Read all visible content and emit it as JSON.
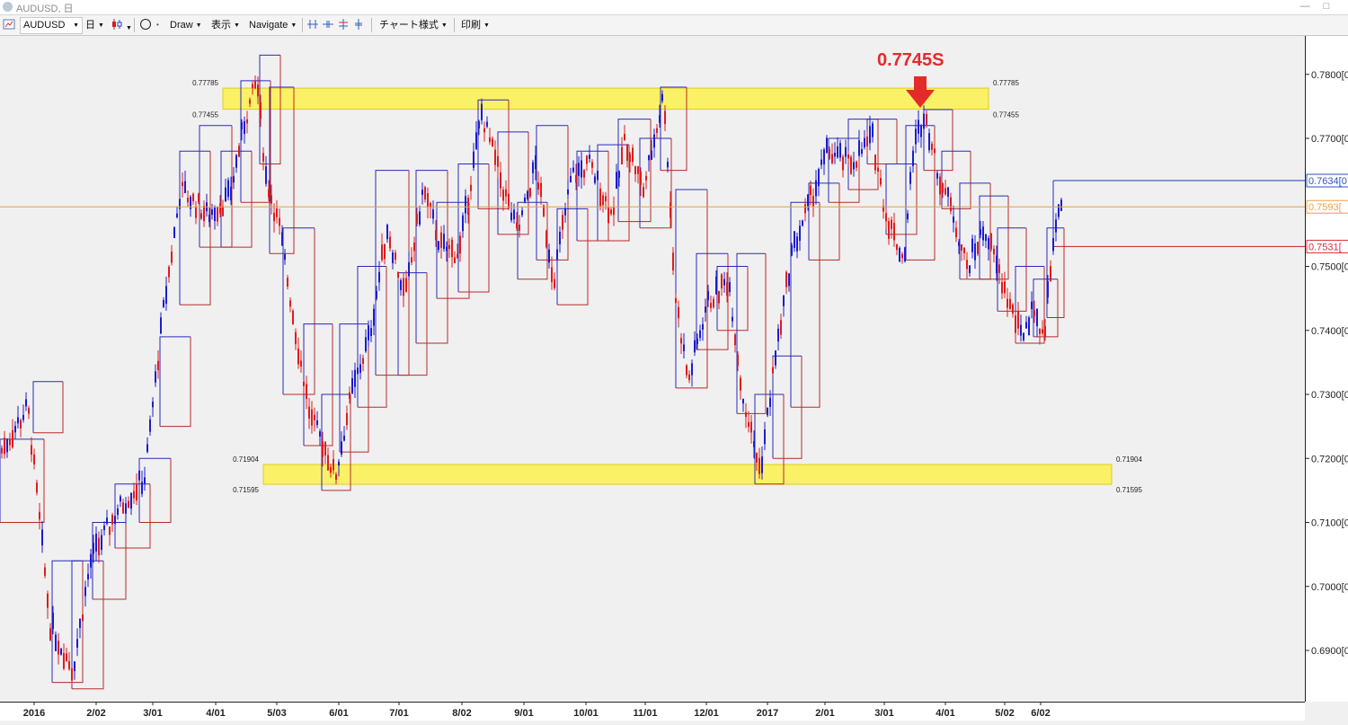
{
  "window": {
    "title": "AUDUSD, 日"
  },
  "toolbar": {
    "symbol": "AUDUSD",
    "timeframe": "日",
    "draw_label": "Draw",
    "view_label": "表示",
    "navigate_label": "Navigate",
    "chart_style_label": "チャート様式",
    "print_label": "印刷"
  },
  "colors": {
    "up": "#1c1cd0",
    "down": "#e01c1c",
    "zone": "#fbf25c",
    "zone_border": "#d8cc10",
    "current_line": "#e2a14e",
    "label_blue": "#2a52c8",
    "label_orange": "#f0a040",
    "label_red": "#d83030",
    "annotation": "#e52a2a"
  },
  "chart_data": {
    "type": "candlestick",
    "title": "AUDUSD, 日",
    "yrange": [
      0.682,
      0.786
    ],
    "y_ticks": [
      "0.7800[0",
      "0.7700[0",
      "0.7500[0",
      "0.7400[0",
      "0.7300[0",
      "0.7200[0",
      "0.7100[0",
      "0.7000[0",
      "0.6900[0"
    ],
    "x_ticks": [
      "2016",
      "2/02",
      "3/01",
      "4/01",
      "5/03",
      "6/01",
      "7/01",
      "8/02",
      "9/01",
      "10/01",
      "11/01",
      "12/01",
      "2017",
      "2/01",
      "3/01",
      "4/01",
      "5/02",
      "6/02"
    ],
    "annotation": {
      "text": "0.7745S",
      "price": 0.7745
    },
    "zones": [
      {
        "top": 0.77785,
        "bottom": 0.77455,
        "top_label": "0.77785",
        "bottom_label": "0.77455"
      },
      {
        "top": 0.71904,
        "bottom": 0.71595,
        "top_label": "0.71904",
        "bottom_label": "0.71595"
      }
    ],
    "price_labels": [
      {
        "price": 0.7634,
        "text": "0.7634[0",
        "color": "blue"
      },
      {
        "price": 0.7593,
        "text": "0.7593[",
        "color": "orange"
      },
      {
        "price": 0.7531,
        "text": "0.7531[",
        "color": "red"
      }
    ],
    "current_price": 0.7593,
    "anchors": [
      [
        0,
        0.721
      ],
      [
        30,
        0.728
      ],
      [
        55,
        0.694
      ],
      [
        80,
        0.687
      ],
      [
        100,
        0.704
      ],
      [
        130,
        0.712
      ],
      [
        160,
        0.717
      ],
      [
        180,
        0.742
      ],
      [
        200,
        0.762
      ],
      [
        230,
        0.758
      ],
      [
        255,
        0.761
      ],
      [
        270,
        0.772
      ],
      [
        285,
        0.779
      ],
      [
        295,
        0.764
      ],
      [
        310,
        0.756
      ],
      [
        330,
        0.738
      ],
      [
        345,
        0.726
      ],
      [
        360,
        0.722
      ],
      [
        372,
        0.717
      ],
      [
        390,
        0.73
      ],
      [
        410,
        0.739
      ],
      [
        430,
        0.756
      ],
      [
        450,
        0.745
      ],
      [
        470,
        0.762
      ],
      [
        490,
        0.753
      ],
      [
        510,
        0.752
      ],
      [
        535,
        0.774
      ],
      [
        555,
        0.764
      ],
      [
        575,
        0.755
      ],
      [
        595,
        0.766
      ],
      [
        615,
        0.748
      ],
      [
        635,
        0.764
      ],
      [
        655,
        0.766
      ],
      [
        680,
        0.758
      ],
      [
        695,
        0.77
      ],
      [
        715,
        0.762
      ],
      [
        738,
        0.777
      ],
      [
        750,
        0.746
      ],
      [
        765,
        0.732
      ],
      [
        785,
        0.744
      ],
      [
        810,
        0.748
      ],
      [
        825,
        0.73
      ],
      [
        845,
        0.718
      ],
      [
        860,
        0.734
      ],
      [
        880,
        0.752
      ],
      [
        900,
        0.76
      ],
      [
        920,
        0.768
      ],
      [
        945,
        0.766
      ],
      [
        970,
        0.77
      ],
      [
        985,
        0.758
      ],
      [
        1005,
        0.751
      ],
      [
        1015,
        0.768
      ],
      [
        1028,
        0.7745
      ],
      [
        1040,
        0.766
      ],
      [
        1060,
        0.758
      ],
      [
        1075,
        0.75
      ],
      [
        1095,
        0.756
      ],
      [
        1115,
        0.747
      ],
      [
        1135,
        0.739
      ],
      [
        1150,
        0.744
      ],
      [
        1160,
        0.738
      ],
      [
        1172,
        0.756
      ],
      [
        1182,
        0.76
      ]
    ],
    "box_levels": [
      [
        0,
        0.723,
        0.71
      ],
      [
        37,
        0.732,
        0.724
      ],
      [
        58,
        0.704,
        0.685
      ],
      [
        80,
        0.704,
        0.684
      ],
      [
        103,
        0.71,
        0.698
      ],
      [
        128,
        0.716,
        0.706
      ],
      [
        155,
        0.72,
        0.71
      ],
      [
        178,
        0.739,
        0.725
      ],
      [
        200,
        0.768,
        0.744
      ],
      [
        222,
        0.772,
        0.753
      ],
      [
        246,
        0.768,
        0.753
      ],
      [
        268,
        0.779,
        0.76
      ],
      [
        289,
        0.783,
        0.766
      ],
      [
        300,
        0.778,
        0.752
      ],
      [
        315,
        0.756,
        0.73
      ],
      [
        338,
        0.741,
        0.722
      ],
      [
        358,
        0.73,
        0.715
      ],
      [
        378,
        0.741,
        0.721
      ],
      [
        398,
        0.75,
        0.728
      ],
      [
        418,
        0.765,
        0.733
      ],
      [
        443,
        0.749,
        0.733
      ],
      [
        463,
        0.765,
        0.738
      ],
      [
        486,
        0.76,
        0.745
      ],
      [
        510,
        0.766,
        0.746
      ],
      [
        532,
        0.776,
        0.759
      ],
      [
        554,
        0.771,
        0.755
      ],
      [
        576,
        0.76,
        0.748
      ],
      [
        597,
        0.772,
        0.751
      ],
      [
        620,
        0.759,
        0.744
      ],
      [
        642,
        0.768,
        0.754
      ],
      [
        665,
        0.769,
        0.754
      ],
      [
        688,
        0.773,
        0.757
      ],
      [
        712,
        0.77,
        0.756
      ],
      [
        735,
        0.778,
        0.765
      ],
      [
        752,
        0.762,
        0.731
      ],
      [
        775,
        0.752,
        0.737
      ],
      [
        798,
        0.75,
        0.74
      ],
      [
        820,
        0.752,
        0.727
      ],
      [
        840,
        0.73,
        0.716
      ],
      [
        860,
        0.736,
        0.72
      ],
      [
        880,
        0.76,
        0.728
      ],
      [
        900,
        0.763,
        0.751
      ],
      [
        922,
        0.77,
        0.76
      ],
      [
        944,
        0.773,
        0.762
      ],
      [
        965,
        0.773,
        0.766
      ],
      [
        986,
        0.766,
        0.755
      ],
      [
        1008,
        0.772,
        0.751
      ],
      [
        1028,
        0.7745,
        0.765
      ],
      [
        1048,
        0.768,
        0.759
      ],
      [
        1068,
        0.763,
        0.748
      ],
      [
        1090,
        0.761,
        0.748
      ],
      [
        1110,
        0.756,
        0.743
      ],
      [
        1130,
        0.75,
        0.738
      ],
      [
        1150,
        0.748,
        0.739
      ],
      [
        1165,
        0.756,
        0.742
      ],
      [
        1172,
        0.7634,
        0.7531
      ]
    ]
  }
}
